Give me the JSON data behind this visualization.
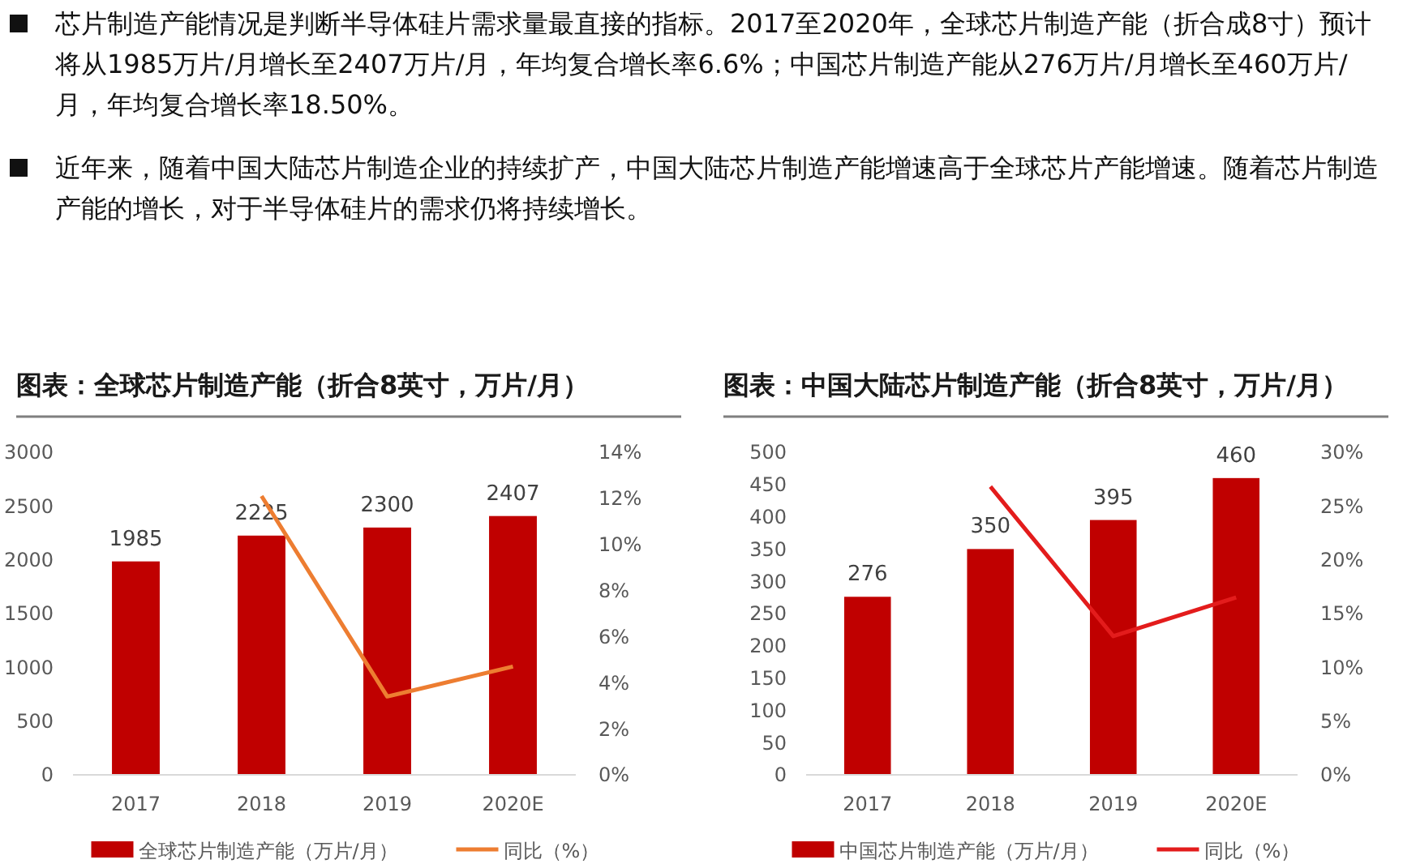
{
  "chart_data": [
    {
      "type": "bar",
      "title": "图表：全球芯片制造产能（折合8英寸，万片/月）",
      "annotations": [
        "芯片制造产能情况是判断半导体硅片需求量最直接的指标。2017至2020年，全球芯片制造产能（折合成8寸）预计将从1985万片/月增长至2407万片/月，年均复合增长率6.6%；中国芯片制造产能从276万片/月增长至460万片/月，年均复合增长率18.50%。",
        "近年来，随着中国大陆芯片制造企业的持续扩产，中国大陆芯片制造产能增速高于全球芯片产能增速。随着芯片制造产能的增长，对于半导体硅片的需求仍将持续增长。"
      ],
      "categories": [
        "2017",
        "2018",
        "2019",
        "2020E"
      ],
      "series": [
        {
          "name": "全球芯片制造产能（万片/月）",
          "color": "#c00000",
          "values": [
            1985,
            2225,
            2300,
            2407
          ],
          "value_labels": [
            "1985",
            "2225",
            "2300",
            "2407"
          ]
        },
        {
          "name": "同比（%）",
          "type": "line",
          "axis": "y2",
          "color": "#ed7d31",
          "values": [
            null,
            12.1,
            3.4,
            4.7
          ]
        }
      ],
      "ylim": [
        0,
        3000
      ],
      "yticks": [
        0,
        500,
        1000,
        1500,
        2000,
        2500,
        3000
      ],
      "y2lim": [
        0,
        14
      ],
      "y2ticks": [
        {
          "value": 0,
          "label": "0%"
        },
        {
          "value": 2,
          "label": "2%"
        },
        {
          "value": 4,
          "label": "4%"
        },
        {
          "value": 6,
          "label": "6%"
        },
        {
          "value": 8,
          "label": "8%"
        },
        {
          "value": 10,
          "label": "10%"
        },
        {
          "value": 12,
          "label": "12%"
        },
        {
          "value": 14,
          "label": "14%"
        }
      ],
      "legend": "bottom",
      "marker": "none"
    },
    {
      "type": "bar",
      "title": "图表：中国大陆芯片制造产能（折合8英寸，万片/月）",
      "categories": [
        "2017",
        "2018",
        "2019",
        "2020E"
      ],
      "series": [
        {
          "name": "中国芯片制造产能（万片/月）",
          "color": "#c00000",
          "values": [
            276,
            350,
            395,
            460
          ],
          "value_labels": [
            "276",
            "350",
            "395",
            "460"
          ]
        },
        {
          "name": "同比（%）",
          "type": "line",
          "axis": "y2",
          "color": "#e31c1c",
          "values": [
            null,
            26.8,
            12.9,
            16.5
          ]
        }
      ],
      "ylim": [
        0,
        500
      ],
      "yticks": [
        0,
        50,
        100,
        150,
        200,
        250,
        300,
        350,
        400,
        450,
        500
      ],
      "y2lim": [
        0,
        30
      ],
      "y2ticks": [
        {
          "value": 0,
          "label": "0%"
        },
        {
          "value": 5,
          "label": "5%"
        },
        {
          "value": 10,
          "label": "10%"
        },
        {
          "value": 15,
          "label": "15%"
        },
        {
          "value": 20,
          "label": "20%"
        },
        {
          "value": 25,
          "label": "25%"
        },
        {
          "value": 30,
          "label": "30%"
        }
      ],
      "legend": "bottom",
      "marker": "none"
    }
  ]
}
